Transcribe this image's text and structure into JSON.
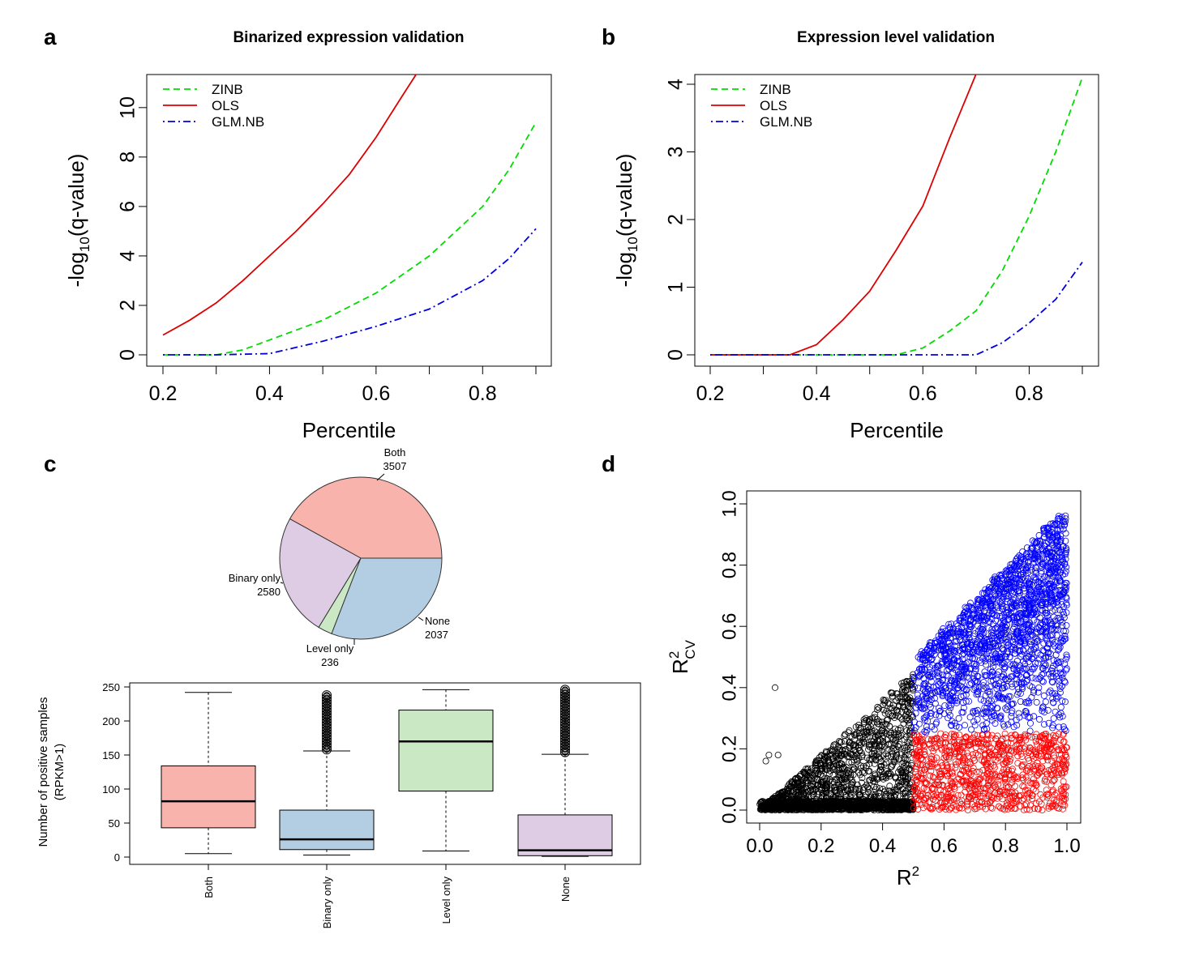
{
  "panels": {
    "a": {
      "letter": "a",
      "title": "Binarized expression validation"
    },
    "b": {
      "letter": "b",
      "title": "Expression level validation"
    },
    "c": {
      "letter": "c"
    },
    "d": {
      "letter": "d"
    }
  },
  "chart_data": [
    {
      "id": "a",
      "type": "line",
      "title": "Binarized expression validation",
      "xlabel": "Percentile",
      "ylabel": "-log10(q-value)",
      "xlim": [
        0.2,
        0.9
      ],
      "ylim": [
        0,
        11
      ],
      "xticks": [
        0.2,
        0.4,
        0.6,
        0.8
      ],
      "yticks": [
        0,
        2,
        4,
        6,
        8,
        10
      ],
      "legend_position": "top-left",
      "series": [
        {
          "name": "ZINB",
          "color": "#00dd00",
          "dash": "dashed",
          "x": [
            0.2,
            0.3,
            0.35,
            0.4,
            0.5,
            0.6,
            0.7,
            0.8,
            0.85,
            0.9
          ],
          "y": [
            0,
            0,
            0.2,
            0.6,
            1.4,
            2.5,
            4.0,
            6.0,
            7.5,
            9.4
          ]
        },
        {
          "name": "OLS",
          "color": "#dd0000",
          "dash": "solid",
          "x": [
            0.2,
            0.25,
            0.3,
            0.35,
            0.4,
            0.45,
            0.5,
            0.55,
            0.6,
            0.65,
            0.68
          ],
          "y": [
            0.8,
            1.4,
            2.1,
            3.0,
            4.0,
            5.0,
            6.1,
            7.3,
            8.8,
            10.5,
            11.5
          ]
        },
        {
          "name": "GLM.NB",
          "color": "#0000dd",
          "dash": "dotdash",
          "x": [
            0.2,
            0.3,
            0.4,
            0.5,
            0.6,
            0.7,
            0.8,
            0.85,
            0.9
          ],
          "y": [
            0,
            0,
            0.05,
            0.55,
            1.15,
            1.85,
            3.0,
            3.9,
            5.1
          ]
        }
      ]
    },
    {
      "id": "b",
      "type": "line",
      "title": "Expression level validation",
      "xlabel": "Percentile",
      "ylabel": "-log10(q-value)",
      "xlim": [
        0.2,
        0.9
      ],
      "ylim": [
        0,
        4
      ],
      "xticks": [
        0.2,
        0.4,
        0.6,
        0.8
      ],
      "yticks": [
        0,
        1,
        2,
        3,
        4
      ],
      "legend_position": "top-left",
      "series": [
        {
          "name": "ZINB",
          "color": "#00dd00",
          "dash": "dashed",
          "x": [
            0.2,
            0.55,
            0.6,
            0.65,
            0.7,
            0.75,
            0.8,
            0.85,
            0.9
          ],
          "y": [
            0,
            0,
            0.1,
            0.35,
            0.65,
            1.25,
            2.05,
            3.0,
            4.1
          ]
        },
        {
          "name": "OLS",
          "color": "#dd0000",
          "dash": "solid",
          "x": [
            0.2,
            0.35,
            0.4,
            0.45,
            0.5,
            0.55,
            0.6,
            0.65,
            0.7
          ],
          "y": [
            0,
            0,
            0.15,
            0.52,
            0.94,
            1.55,
            2.2,
            3.2,
            4.15
          ]
        },
        {
          "name": "GLM.NB",
          "color": "#0000dd",
          "dash": "dotdash",
          "x": [
            0.2,
            0.7,
            0.75,
            0.8,
            0.85,
            0.9
          ],
          "y": [
            0,
            0,
            0.18,
            0.47,
            0.82,
            1.37
          ]
        }
      ]
    },
    {
      "id": "c-pie",
      "type": "pie",
      "slices": [
        {
          "label": "Both",
          "value": "3507",
          "n": 3507,
          "color": "#f8b4ac"
        },
        {
          "label": "None",
          "value": "2037",
          "n": 2037,
          "color": "#ddcce4"
        },
        {
          "label": "Level only",
          "value": "236",
          "n": 236,
          "color": "#cbe8c5"
        },
        {
          "label": "Binary only",
          "value": "2580",
          "n": 2580,
          "color": "#b3cde3"
        }
      ]
    },
    {
      "id": "c-box",
      "type": "box",
      "ylabel_line1": "Number of positive samples",
      "ylabel_line2": "(RPKM>1)",
      "ylim": [
        0,
        250
      ],
      "yticks": [
        0,
        50,
        100,
        150,
        200,
        250
      ],
      "boxes": [
        {
          "label": "Both",
          "color": "#f8b4ac",
          "q1": 43,
          "median": 82,
          "q3": 134,
          "low": 5,
          "high": 242,
          "outliers": []
        },
        {
          "label": "Binary only",
          "color": "#b3cde3",
          "q1": 11,
          "median": 26,
          "q3": 69,
          "low": 3,
          "high": 156,
          "outliers": [
            158,
            162,
            166,
            170,
            174,
            178,
            182,
            186,
            190,
            194,
            198,
            202,
            206,
            210,
            214,
            218,
            222,
            226,
            230,
            234,
            238
          ]
        },
        {
          "label": "Level only",
          "color": "#cbe8c5",
          "q1": 97,
          "median": 170,
          "q3": 216,
          "low": 9,
          "high": 246,
          "outliers": []
        },
        {
          "label": "None",
          "color": "#ddcce4",
          "q1": 2,
          "median": 10,
          "q3": 62,
          "low": 1,
          "high": 151,
          "outliers": [
            154,
            158,
            162,
            166,
            170,
            174,
            178,
            182,
            186,
            190,
            194,
            198,
            202,
            206,
            210,
            214,
            218,
            222,
            226,
            230,
            234,
            238,
            242,
            246
          ]
        }
      ]
    },
    {
      "id": "d",
      "type": "scatter",
      "xlabel": "R",
      "xlabel_sup": "2",
      "ylabel": "R",
      "ylabel_sup": "2",
      "ylabel_sub": "CV",
      "xlim": [
        0,
        1
      ],
      "ylim": [
        0,
        1
      ],
      "xticks": [
        0.0,
        0.2,
        0.4,
        0.6,
        0.8,
        1.0
      ],
      "yticks": [
        0.0,
        0.2,
        0.4,
        0.6,
        0.8,
        1.0
      ],
      "colors": {
        "low_r2": "#000000",
        "high_r2_low_cv": "#ff0000",
        "high_r2_high_cv": "#0000ff"
      },
      "thresholds": {
        "r2": 0.5,
        "r2cv": 0.25
      },
      "outlier_points": [
        [
          0.05,
          0.4
        ],
        [
          0.03,
          0.18
        ],
        [
          0.06,
          0.18
        ],
        [
          0.02,
          0.16
        ]
      ]
    }
  ]
}
